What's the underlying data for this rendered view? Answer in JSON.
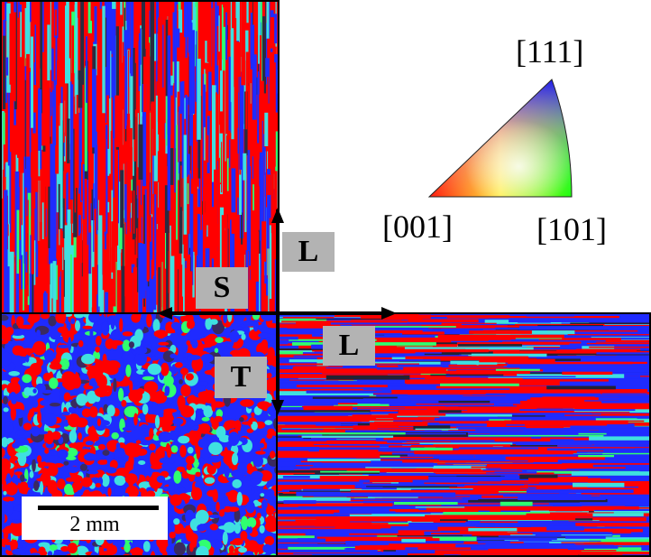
{
  "figure": {
    "sections": [
      {
        "name": "L-S plane",
        "grain_texture": "elongated-vertical"
      },
      {
        "name": "S-T plane",
        "grain_texture": "equiaxed"
      },
      {
        "name": "L-T plane",
        "grain_texture": "elongated-horizontal"
      }
    ],
    "axis_labels": {
      "longitudinal_top": "L",
      "short": "S",
      "longitudinal_right": "L",
      "transverse": "T"
    },
    "ipf_legend": {
      "pole_111": "[111]",
      "pole_001": "[001]",
      "pole_101": "[101]"
    },
    "scale_bar": {
      "label": "2 mm"
    },
    "colors": {
      "red": "#ff0000",
      "blue": "#1f2bff",
      "cyan": "#3fe0e0",
      "green": "#30ff70",
      "label_box": "#b3b3b3"
    }
  }
}
